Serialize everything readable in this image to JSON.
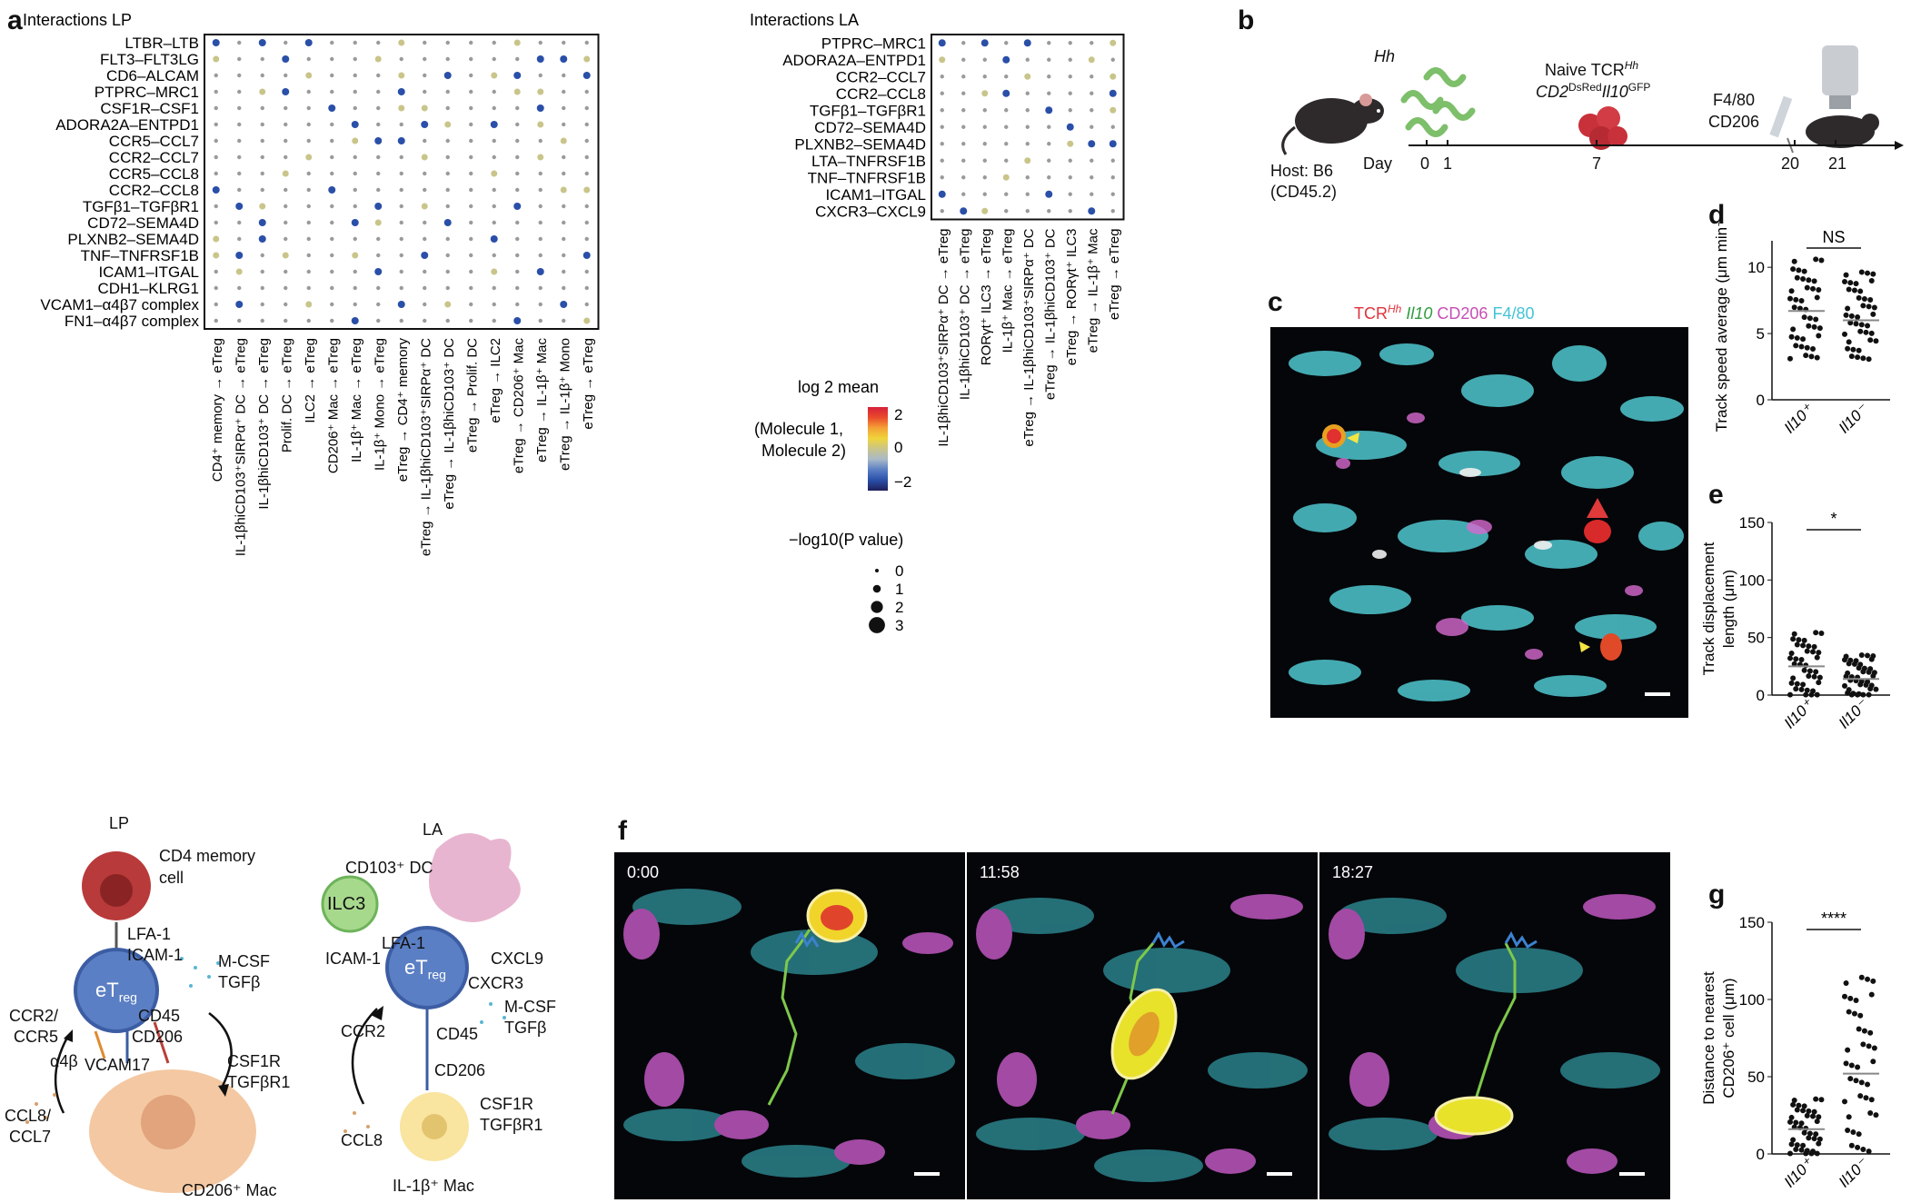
{
  "panels": {
    "a": "a",
    "b": "b",
    "c": "c",
    "d": "d",
    "e": "e",
    "f": "f",
    "g": "g"
  },
  "dotplot_lp": {
    "title": "Interactions LP",
    "rows": [
      "LTBR–LTB",
      "FLT3–FLT3LG",
      "CD6–ALCAM",
      "PTPRC–MRC1",
      "CSF1R–CSF1",
      "ADORA2A–ENTPD1",
      "CCR5–CCL7",
      "CCR2–CCL7",
      "CCR5–CCL8",
      "CCR2–CCL8",
      "TGFβ1–TGFβR1",
      "CD72–SEMA4D",
      "PLXNB2–SEMA4D",
      "TNF–TNFRSF1B",
      "ICAM1–ITGAL",
      "CDH1–KLRG1",
      "VCAM1–α4β7 complex",
      "FN1–α4β7 complex"
    ],
    "cols": [
      "CD4⁺ memory → eTreg",
      "IL-1βhiCD103⁺SIRPα⁺ DC → eTreg",
      "IL-1βhiCD103⁺ DC → eTreg",
      "Prolif. DC → eTreg",
      "ILC2 → eTreg",
      "CD206⁺ Mac → eTreg",
      "IL-1β⁺ Mac → eTreg",
      "IL-1β⁺ Mono → eTreg",
      "eTreg → CD4⁺ memory",
      "eTreg → IL-1βhiCD103⁺SIRPα⁺ DC",
      "eTreg → IL-1βhiCD103⁺ DC",
      "eTreg → Prolif. DC",
      "eTreg → ILC2",
      "eTreg → CD206⁺ Mac",
      "eTreg → IL-1β⁺ Mac",
      "eTreg → IL-1β⁺ Mono",
      "eTreg → eTreg"
    ]
  },
  "dotplot_la": {
    "title": "Interactions LA",
    "rows": [
      "PTPRC–MRC1",
      "ADORA2A–ENTPD1",
      "CCR2–CCL7",
      "CCR2–CCL8",
      "TGFβ1–TGFβR1",
      "CD72–SEMA4D",
      "PLXNB2–SEMA4D",
      "LTA–TNFRSF1B",
      "TNF–TNFRSF1B",
      "ICAM1–ITGAL",
      "CXCR3–CXCL9"
    ],
    "cols": [
      "IL-1βhiCD103⁺SIRPα⁺ DC → eTreg",
      "IL-1βhiCD103⁺ DC → eTreg",
      "RORγt⁺ ILC3 → eTreg",
      "IL-1β⁺ Mac → eTreg",
      "eTreg → IL-1βhiCD103⁺SIRPα⁺ DC",
      "eTreg → IL-1βhiCD103⁺ DC",
      "eTreg → RORγt⁺ ILC3",
      "eTreg → IL-1β⁺ Mac",
      "eTreg → eTreg"
    ]
  },
  "legend": {
    "color_title_1": "log",
    "color_title_sub": "2",
    "color_title_2": " mean",
    "color_desc_1": "(Molecule 1,",
    "color_desc_2": "Molecule 2)",
    "ticks": [
      "2",
      "0",
      "−2"
    ],
    "size_title": "−log10(P value)",
    "size_ticks": [
      "0",
      "1",
      "2",
      "3"
    ]
  },
  "panel_b": {
    "hh": "Hh",
    "naive": "Naive TCR",
    "naive_sup": "Hh",
    "cd2": "CD2",
    "dsred": "DsRed",
    "il10": "Il10",
    "gfp": "GFP",
    "host": "Host: B6",
    "host2": "(CD45.2)",
    "day_label": "Day",
    "days": [
      "0",
      "1",
      "7",
      "20",
      "21"
    ],
    "f480": "F4/80",
    "cd206": "CD206"
  },
  "panel_c": {
    "tcr": "TCR",
    "tcr_sup": "Hh",
    "il10": "Il10",
    "cd206": "CD206",
    "f480": "F4/80"
  },
  "panel_d": {
    "ylabel": "Track speed average (μm min⁻¹)",
    "yticks": [
      "0",
      "5",
      "10"
    ],
    "sig": "NS",
    "groups": [
      "Il10⁺",
      "Il10⁻"
    ]
  },
  "panel_e": {
    "ylabel_1": "Track displacement",
    "ylabel_2": "length (μm)",
    "yticks": [
      "0",
      "50",
      "100",
      "150"
    ],
    "sig": "*",
    "groups": [
      "Il10⁺",
      "Il10⁻"
    ]
  },
  "panel_g": {
    "ylabel_1": "Distance to nearest",
    "ylabel_2": "CD206⁺ cell (μm)",
    "yticks": [
      "0",
      "50",
      "100",
      "150"
    ],
    "sig": "****",
    "groups": [
      "Il10⁺",
      "Il10⁻"
    ]
  },
  "panel_f": {
    "times": [
      "0:00",
      "11:58",
      "18:27"
    ]
  },
  "schematic_lp": {
    "title": "LP",
    "cd4": "CD4 memory",
    "cell": "cell",
    "lfa": "LFA-1",
    "icam": "ICAM-1",
    "etreg": "eT",
    "reg": "reg",
    "mcsf": "M-CSF",
    "tgfb": "TGFβ",
    "ccr2": "CCR2/",
    "ccr5": "CCR5",
    "a4b": "α4β",
    "vcam": "VCAM1",
    "seven": "7",
    "cd45": "CD45",
    "cd206": "CD206",
    "csf1r": "CSF1R",
    "tgfbr1": "TGFβR1",
    "ccl8": "CCL8/",
    "ccl7": "CCL7",
    "mac": "CD206⁺ Mac"
  },
  "schematic_la": {
    "title": "LA",
    "dc": "CD103⁺ DC",
    "ilc3": "ILC3",
    "lfa": "LFA-1",
    "icam": "ICAM-1",
    "cxcl9": "CXCL9",
    "cxcr3": "CXCR3",
    "etreg": "eT",
    "reg": "reg",
    "mcsf": "M-CSF",
    "tgfb": "TGFβ",
    "ccr2": "CCR2",
    "cd45": "CD45",
    "cd206": "CD206",
    "csf1r": "CSF1R",
    "tgfbr1": "TGFβR1",
    "ccl8": "CCL8",
    "mac": "IL-1β⁺ Mac"
  },
  "chart_data": [
    {
      "type": "scatter",
      "title": "",
      "ylabel": "Track speed average (μm min⁻¹)",
      "categories": [
        "Il10⁺",
        "Il10⁻"
      ],
      "ylim": [
        0,
        12
      ],
      "mean": [
        6.7,
        6.0
      ],
      "significance": "NS"
    },
    {
      "type": "scatter",
      "title": "",
      "ylabel": "Track displacement length (μm)",
      "categories": [
        "Il10⁺",
        "Il10⁻"
      ],
      "ylim": [
        0,
        150
      ],
      "median": [
        25,
        14
      ],
      "significance": "*"
    },
    {
      "type": "scatter",
      "title": "",
      "ylabel": "Distance to nearest CD206⁺ cell (μm)",
      "categories": [
        "Il10⁺",
        "Il10⁻"
      ],
      "ylim": [
        0,
        150
      ],
      "median": [
        16,
        52
      ],
      "significance": "****"
    }
  ]
}
